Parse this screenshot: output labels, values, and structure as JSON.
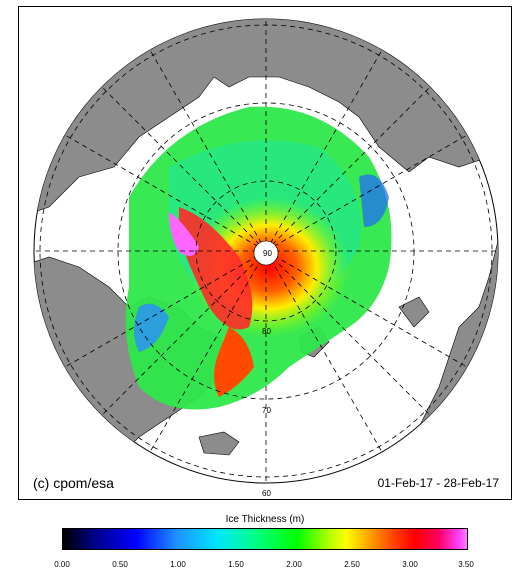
{
  "copyright": "(c) cpom/esa",
  "date_range": "01-Feb-17 - 28-Feb-17",
  "latitude_labels": [
    "90",
    "80",
    "70",
    "60"
  ],
  "colorbar": {
    "title": "Ice Thickness (m)",
    "ticks": [
      "0.00",
      "0.50",
      "1.00",
      "1.50",
      "2.00",
      "2.50",
      "3.00",
      "3.50"
    ]
  },
  "colors": {
    "land": "#8c8c8c",
    "ocean": "#ffffff",
    "coast": "#000000",
    "graticule": "#000000"
  }
}
